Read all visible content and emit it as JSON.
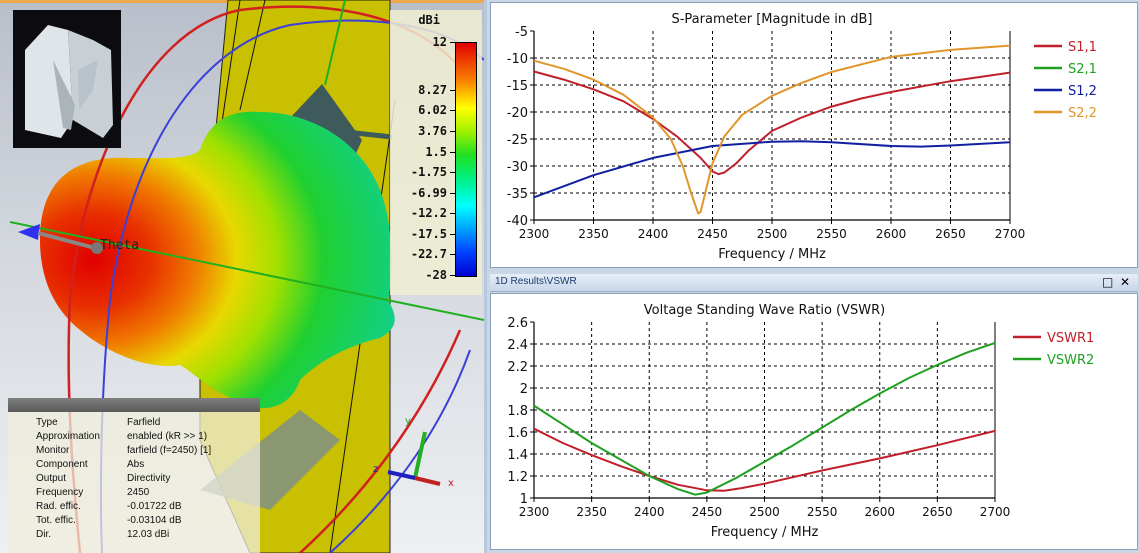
{
  "view3d": {
    "colorbar": {
      "unit": "dBi",
      "ticks": [
        "12",
        "8.27",
        "6.02",
        "3.76",
        "1.5",
        "-1.75",
        "-6.99",
        "-12.2",
        "-17.5",
        "-22.7",
        "-28"
      ]
    },
    "theta_label": "Theta",
    "axes": {
      "x": "x",
      "y": "y",
      "z": "z"
    },
    "info": [
      {
        "key": "Type",
        "value": "Farfield"
      },
      {
        "key": "Approximation",
        "value": "enabled (kR >> 1)"
      },
      {
        "key": "Monitor",
        "value": "farfield (f=2450) [1]"
      },
      {
        "key": "Component",
        "value": "Abs"
      },
      {
        "key": "Output",
        "value": "Directivity"
      },
      {
        "key": "Frequency",
        "value": "2450"
      },
      {
        "key": "Rad. effic.",
        "value": "-0.01722 dB"
      },
      {
        "key": "Tot. effic.",
        "value": "-0.03104 dB"
      },
      {
        "key": "Dir.",
        "value": "12.03 dBi"
      }
    ]
  },
  "vswr_window": {
    "title": "1D Results\\VSWR",
    "maximize_icon": "maximize-icon",
    "close_icon": "close-icon",
    "maximize_glyph": "□",
    "close_glyph": "✕"
  },
  "chart_data": [
    {
      "type": "line",
      "title": "S-Parameter [Magnitude in dB]",
      "xlabel": "Frequency / MHz",
      "ylabel": "",
      "xlim": [
        2300,
        2700
      ],
      "ylim": [
        -40,
        -5
      ],
      "xticks": [
        "2300",
        "2350",
        "2400",
        "2450",
        "2500",
        "2550",
        "2600",
        "2650",
        "2700"
      ],
      "yticks": [
        "-5",
        "-10",
        "-15",
        "-20",
        "-25",
        "-30",
        "-35",
        "-40"
      ],
      "grid": true,
      "legend": "right",
      "series": [
        {
          "name": "S1,1",
          "color": "#c0202a",
          "x": [
            2300,
            2325,
            2350,
            2375,
            2400,
            2420,
            2440,
            2450,
            2455,
            2460,
            2470,
            2480,
            2500,
            2525,
            2550,
            2575,
            2600,
            2650,
            2700
          ],
          "y": [
            -12.5,
            -14,
            -15.8,
            -18,
            -21.3,
            -24.5,
            -28.5,
            -31,
            -31.5,
            -31.2,
            -29.5,
            -27.2,
            -23.5,
            -21,
            -19,
            -17.5,
            -16.3,
            -14.3,
            -12.7
          ]
        },
        {
          "name": "S2,1",
          "color": "#20a020",
          "x": [],
          "y": []
        },
        {
          "name": "S1,2",
          "color": "#1020a0",
          "x": [
            2300,
            2350,
            2400,
            2450,
            2500,
            2525,
            2550,
            2600,
            2625,
            2650,
            2700
          ],
          "y": [
            -35.8,
            -31.7,
            -28.5,
            -26.3,
            -25.5,
            -25.4,
            -25.6,
            -26.3,
            -26.4,
            -26.2,
            -25.6
          ]
        },
        {
          "name": "S2,2",
          "color": "#e0962a",
          "x": [
            2300,
            2325,
            2350,
            2375,
            2400,
            2415,
            2425,
            2432,
            2438,
            2440,
            2445,
            2450,
            2460,
            2475,
            2500,
            2525,
            2550,
            2600,
            2650,
            2700
          ],
          "y": [
            -10.5,
            -12,
            -14,
            -16.8,
            -21,
            -25,
            -30,
            -35,
            -38.8,
            -38.5,
            -34,
            -29.5,
            -24.5,
            -20.5,
            -17,
            -14.6,
            -12.6,
            -9.8,
            -8.5,
            -7.7
          ]
        }
      ]
    },
    {
      "type": "line",
      "title": "Voltage Standing Wave Ratio (VSWR)",
      "xlabel": "Frequency / MHz",
      "ylabel": "",
      "xlim": [
        2300,
        2700
      ],
      "ylim": [
        1,
        2.6
      ],
      "xticks": [
        "2300",
        "2350",
        "2400",
        "2450",
        "2500",
        "2550",
        "2600",
        "2650",
        "2700"
      ],
      "yticks": [
        "2.6",
        "2.4",
        "2.2",
        "2",
        "1.8",
        "1.6",
        "1.4",
        "1.2",
        "1"
      ],
      "grid": true,
      "legend": "right",
      "series": [
        {
          "name": "VSWR1",
          "color": "#c0202a",
          "x": [
            2300,
            2325,
            2350,
            2375,
            2400,
            2425,
            2450,
            2465,
            2480,
            2500,
            2550,
            2600,
            2650,
            2700
          ],
          "y": [
            1.63,
            1.5,
            1.39,
            1.29,
            1.2,
            1.12,
            1.07,
            1.065,
            1.09,
            1.13,
            1.25,
            1.36,
            1.48,
            1.61
          ]
        },
        {
          "name": "VSWR2",
          "color": "#20a020",
          "x": [
            2300,
            2325,
            2350,
            2375,
            2400,
            2425,
            2440,
            2450,
            2475,
            2500,
            2525,
            2550,
            2575,
            2600,
            2625,
            2650,
            2675,
            2700
          ],
          "y": [
            1.84,
            1.67,
            1.5,
            1.35,
            1.2,
            1.08,
            1.03,
            1.05,
            1.18,
            1.33,
            1.48,
            1.64,
            1.8,
            1.95,
            2.09,
            2.21,
            2.32,
            2.41
          ]
        }
      ]
    }
  ]
}
